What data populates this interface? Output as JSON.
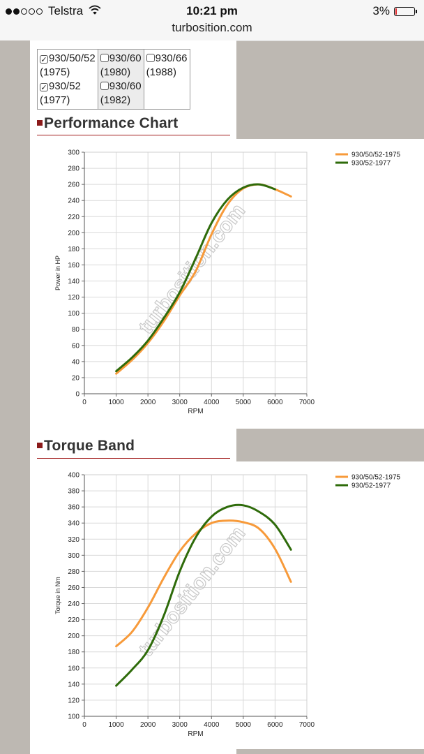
{
  "status": {
    "signal_filled": 2,
    "signal_total": 5,
    "carrier": "Telstra",
    "time": "10:21 pm",
    "url": "turbosition.com",
    "battery": "3%"
  },
  "filters": [
    {
      "label": "930/50/52",
      "year": "(1975)",
      "checked": true
    },
    {
      "label": "930/52",
      "year": "(1977)",
      "checked": true
    },
    {
      "label": "930/60",
      "year": "(1980)",
      "checked": false
    },
    {
      "label": "930/60",
      "year": "(1982)",
      "checked": false
    },
    {
      "label": "930/66",
      "year": "(1988)",
      "checked": false
    }
  ],
  "sections": {
    "performance_title": "Performance Chart",
    "torque_title": "Torque Band"
  },
  "watermark": "turbosition.com",
  "colors": {
    "series1": "#f79a3a",
    "series2": "#2e6b0a",
    "accent": "#a0191a"
  },
  "chart_data": [
    {
      "type": "line",
      "title": "Performance Chart",
      "xlabel": "RPM",
      "ylabel": "Power in HP",
      "xlim": [
        0,
        7000
      ],
      "ylim": [
        0,
        300
      ],
      "xticks": [
        0,
        1000,
        2000,
        3000,
        4000,
        5000,
        6000,
        7000
      ],
      "yticks": [
        0,
        20,
        40,
        60,
        80,
        100,
        120,
        140,
        160,
        180,
        200,
        220,
        240,
        260,
        280,
        300
      ],
      "series": [
        {
          "name": "930/50/52-1975",
          "x": [
            1000,
            1500,
            2000,
            2500,
            3000,
            3500,
            4000,
            4500,
            5000,
            5500,
            6000,
            6500
          ],
          "values": [
            25,
            42,
            63,
            90,
            122,
            152,
            198,
            235,
            255,
            260,
            254,
            245
          ]
        },
        {
          "name": "930/52-1977",
          "x": [
            1000,
            1500,
            2000,
            2500,
            3000,
            3500,
            4000,
            4500,
            5000,
            5500,
            6000
          ],
          "values": [
            28,
            45,
            66,
            94,
            126,
            168,
            212,
            241,
            256,
            260,
            254
          ]
        }
      ]
    },
    {
      "type": "line",
      "title": "Torque Band",
      "xlabel": "RPM",
      "ylabel": "Torque in Nm",
      "xlim": [
        0,
        7000
      ],
      "ylim": [
        100,
        400
      ],
      "xticks": [
        0,
        1000,
        2000,
        3000,
        4000,
        5000,
        6000,
        7000
      ],
      "yticks": [
        100,
        120,
        140,
        160,
        180,
        200,
        220,
        240,
        260,
        280,
        300,
        320,
        340,
        360,
        380,
        400
      ],
      "series": [
        {
          "name": "930/50/52-1975",
          "x": [
            1000,
            1500,
            2000,
            2500,
            3000,
            3500,
            4000,
            4500,
            5000,
            5500,
            6000,
            6500
          ],
          "values": [
            187,
            205,
            235,
            272,
            305,
            327,
            340,
            343,
            341,
            333,
            308,
            267
          ]
        },
        {
          "name": "930/52-1977",
          "x": [
            1000,
            1500,
            2000,
            2500,
            3000,
            3500,
            4000,
            4500,
            5000,
            5500,
            6000,
            6500
          ],
          "values": [
            138,
            158,
            182,
            225,
            280,
            322,
            348,
            360,
            362,
            354,
            338,
            307
          ]
        }
      ]
    }
  ]
}
